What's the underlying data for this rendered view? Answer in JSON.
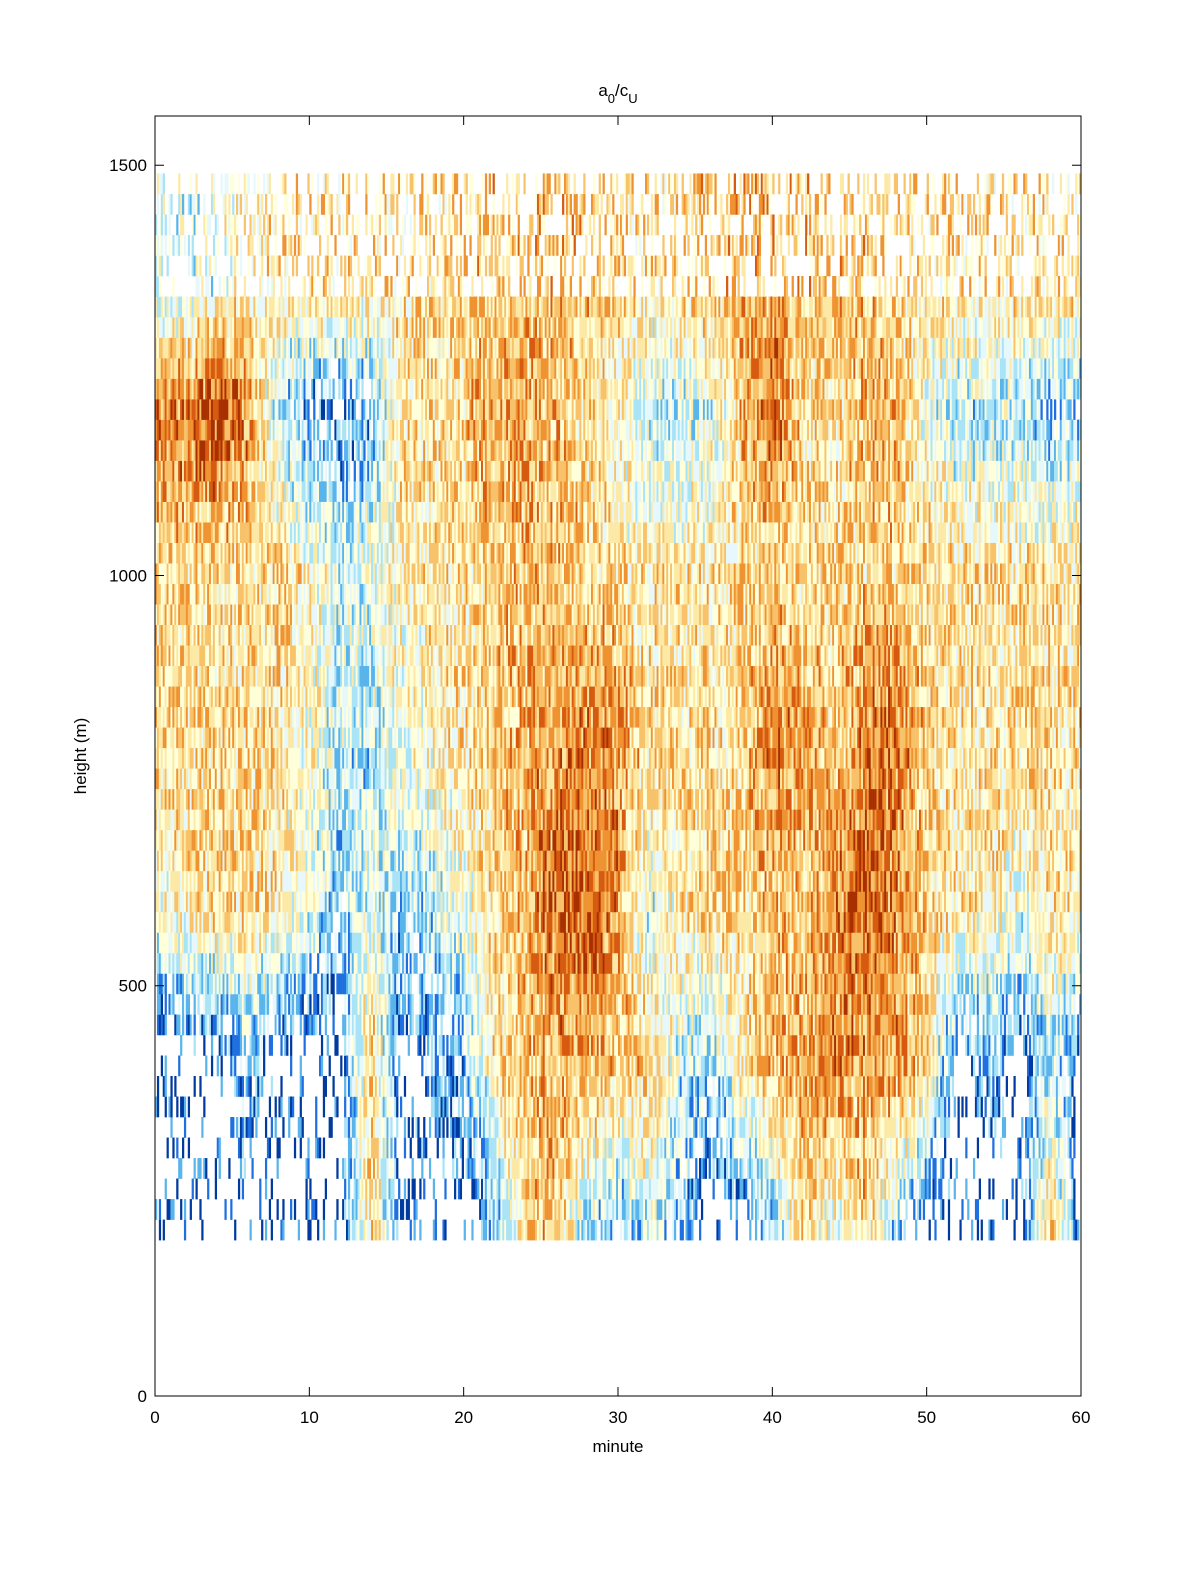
{
  "chart_data": {
    "type": "heatmap",
    "title": {
      "base": "a",
      "base_sub": "0",
      "slash": "/",
      "denom": "c",
      "denom_sub": "U"
    },
    "xlabel": "minute",
    "ylabel": "height (m)",
    "xlim": [
      0,
      60
    ],
    "ylim": [
      0,
      1560
    ],
    "xticks": [
      0,
      10,
      20,
      30,
      40,
      50,
      60
    ],
    "yticks": [
      0,
      500,
      1000,
      1500
    ],
    "grid": false,
    "colorscale": [
      "#003a9e",
      "#1f6fe0",
      "#5ab4ec",
      "#a9e3f6",
      "#e6f8fb",
      "#ffffd9",
      "#fde9a6",
      "#f8c26a",
      "#ef9332",
      "#d65a10",
      "#a83000"
    ],
    "heatmap": {
      "cell_height_m": 25,
      "cell_width_min": 0.125,
      "bottom_m": 190,
      "top_m": 1480,
      "anchor_times": [
        0,
        2,
        4,
        6,
        8,
        10,
        12,
        14,
        16,
        18,
        20,
        22,
        24,
        26,
        28,
        30,
        32,
        34,
        36,
        38,
        40,
        42,
        44,
        46,
        48,
        50,
        52,
        54,
        56,
        58,
        60
      ],
      "anchor_heights": [
        200,
        400,
        600,
        800,
        1000,
        1200,
        1350
      ],
      "values": [
        [
          -2.0,
          -2.0,
          -0.2,
          0.8,
          0.6,
          1.2,
          -0.5
        ],
        [
          -2.0,
          -2.0,
          0.4,
          0.6,
          0.6,
          1.6,
          -0.5
        ],
        [
          -2.0,
          -2.0,
          0.6,
          0.5,
          0.5,
          2.0,
          -0.2
        ],
        [
          -2.0,
          -1.2,
          0.5,
          0.6,
          0.4,
          1.4,
          0.2
        ],
        [
          -2.0,
          -2.0,
          0.3,
          0.4,
          0.6,
          -0.8,
          0.4
        ],
        [
          -2.0,
          -2.0,
          -0.3,
          0.0,
          0.3,
          -1.4,
          0.5
        ],
        [
          -2.0,
          -2.0,
          -1.0,
          -0.6,
          -0.4,
          -1.7,
          0.4
        ],
        [
          0.6,
          0.8,
          -0.4,
          -0.8,
          -0.2,
          -1.2,
          0.5
        ],
        [
          -2.0,
          -2.0,
          -1.0,
          0.0,
          0.2,
          0.5,
          0.4
        ],
        [
          -2.0,
          -1.4,
          -0.6,
          0.2,
          0.3,
          0.6,
          0.5
        ],
        [
          -2.0,
          -1.2,
          -0.2,
          0.4,
          0.5,
          0.6,
          0.6
        ],
        [
          -1.4,
          0.4,
          0.5,
          0.8,
          0.6,
          1.2,
          0.7
        ],
        [
          0.6,
          0.8,
          1.0,
          1.0,
          0.8,
          1.0,
          0.8
        ],
        [
          0.8,
          1.0,
          1.6,
          1.2,
          0.8,
          0.8,
          0.8
        ],
        [
          -0.8,
          1.0,
          1.8,
          1.4,
          0.7,
          0.6,
          0.7
        ],
        [
          -1.2,
          0.6,
          1.2,
          1.2,
          0.4,
          0.0,
          0.6
        ],
        [
          -0.6,
          0.8,
          -0.6,
          0.6,
          0.3,
          -0.6,
          0.5
        ],
        [
          -1.2,
          -0.6,
          0.4,
          0.6,
          0.4,
          -0.8,
          0.6
        ],
        [
          -2.0,
          -1.0,
          0.6,
          0.4,
          0.3,
          -0.4,
          0.7
        ],
        [
          -2.0,
          0.2,
          0.6,
          0.6,
          0.5,
          0.8,
          0.9
        ],
        [
          -1.0,
          1.0,
          0.8,
          1.4,
          0.6,
          1.6,
          1.0
        ],
        [
          0.6,
          1.0,
          0.8,
          1.2,
          0.5,
          0.6,
          0.9
        ],
        [
          -0.4,
          1.4,
          1.2,
          0.6,
          0.5,
          0.4,
          0.8
        ],
        [
          0.8,
          1.0,
          1.8,
          1.4,
          0.6,
          1.0,
          0.7
        ],
        [
          -1.0,
          1.2,
          1.2,
          1.6,
          0.6,
          1.0,
          0.6
        ],
        [
          -2.0,
          0.6,
          0.6,
          0.6,
          0.6,
          -0.2,
          0.5
        ],
        [
          -2.0,
          -2.0,
          0.4,
          0.4,
          0.6,
          -0.8,
          0.4
        ],
        [
          -2.0,
          -1.2,
          0.4,
          0.4,
          0.5,
          -0.6,
          0.5
        ],
        [
          -2.0,
          -2.0,
          -0.2,
          0.6,
          0.4,
          -0.6,
          0.5
        ],
        [
          0.8,
          -0.6,
          0.4,
          0.5,
          0.4,
          -1.2,
          0.4
        ],
        [
          -2.0,
          -2.0,
          0.3,
          0.4,
          0.5,
          -1.0,
          0.6
        ]
      ]
    }
  }
}
